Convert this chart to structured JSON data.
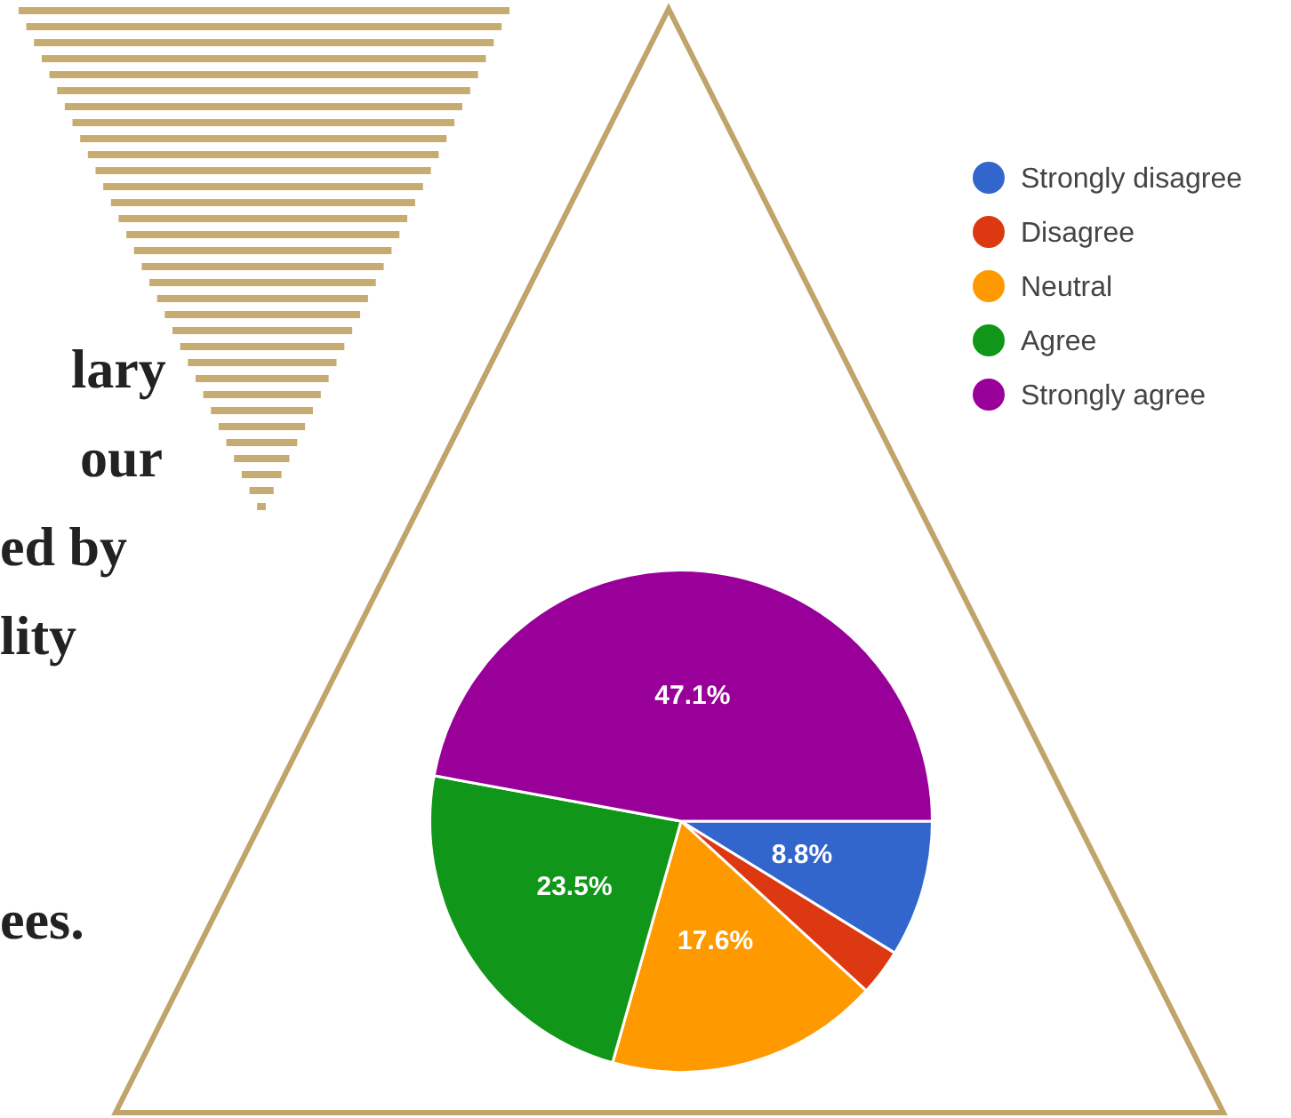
{
  "chart_data": {
    "type": "pie",
    "categories": [
      "Strongly disagree",
      "Disagree",
      "Neutral",
      "Agree",
      "Strongly agree"
    ],
    "values": [
      8.8,
      3.0,
      17.6,
      23.5,
      47.1
    ],
    "colors": [
      "#3366cc",
      "#dc3912",
      "#ff9900",
      "#109618",
      "#990099"
    ],
    "value_labels": [
      "8.8%",
      null,
      "17.6%",
      "23.5%",
      "47.1%"
    ],
    "legend": "top right",
    "annotations": [
      "lary",
      "our",
      "ed by",
      "lity",
      "ees."
    ]
  }
}
